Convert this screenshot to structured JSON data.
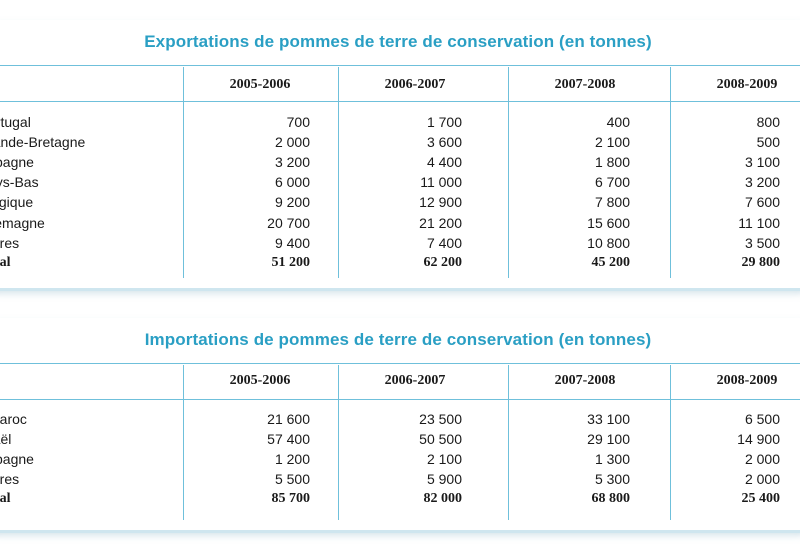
{
  "export_table": {
    "title": "Exportations de pommes de terre de conservation (en tonnes)",
    "columns": [
      "2005-2006",
      "2006-2007",
      "2007-2008",
      "2008-2009"
    ],
    "rows": [
      {
        "label": "ortugal",
        "values": [
          "700",
          "1 700",
          "400",
          "800"
        ]
      },
      {
        "label": "rande-Bretagne",
        "values": [
          "2 000",
          "3 600",
          "2 100",
          "500"
        ]
      },
      {
        "label": "spagne",
        "values": [
          "3 200",
          "4 400",
          "1 800",
          "3 100"
        ]
      },
      {
        "label": "ays-Bas",
        "values": [
          "6 000",
          "11 000",
          "6 700",
          "3 200"
        ]
      },
      {
        "label": "elgique",
        "values": [
          "9 200",
          "12 900",
          "7 800",
          "7 600"
        ]
      },
      {
        "label": "llemagne",
        "values": [
          "20 700",
          "21 200",
          "15 600",
          "11 100"
        ]
      },
      {
        "label": "utres",
        "values": [
          "9 400",
          "7 400",
          "10 800",
          "3 500"
        ]
      },
      {
        "label": "otal",
        "values": [
          "51 200",
          "62 200",
          "45 200",
          "29 800"
        ],
        "total": true
      }
    ]
  },
  "import_table": {
    "title": "Importations de pommes de terre de conservation (en tonnes)",
    "columns": [
      "2005-2006",
      "2006-2007",
      "2007-2008",
      "2008-2009"
    ],
    "rows": [
      {
        "label": "Maroc",
        "values": [
          "21 600",
          "23 500",
          "33 100",
          "6 500"
        ]
      },
      {
        "label": "raël",
        "values": [
          "57 400",
          "50 500",
          "29 100",
          "14 900"
        ]
      },
      {
        "label": "spagne",
        "values": [
          "1 200",
          "2 100",
          "1 300",
          "2 000"
        ]
      },
      {
        "label": "utres",
        "values": [
          "5 500",
          "5 900",
          "5 300",
          "2 000"
        ]
      },
      {
        "label": "otal",
        "values": [
          "85 700",
          "82 000",
          "68 800",
          "25 400"
        ],
        "total": true
      }
    ]
  },
  "colors": {
    "title": "#2a9fc4",
    "rule": "#6fc0db"
  }
}
